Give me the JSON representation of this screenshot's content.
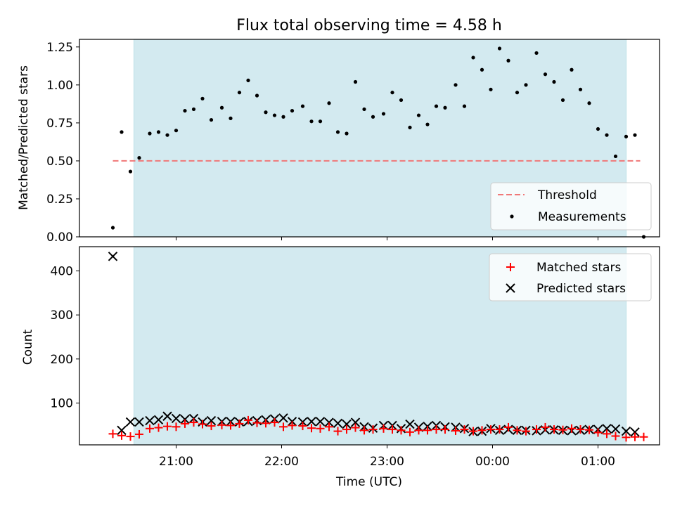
{
  "chart_data": [
    {
      "type": "scatter",
      "title": "Flux total observing time = 4.58 h",
      "xlabel": "",
      "ylabel": "Matched/Predicted stars",
      "ylim": [
        0,
        1.3
      ],
      "yticks": [
        "0.00",
        "0.25",
        "0.50",
        "0.75",
        "1.00",
        "1.25"
      ],
      "ytick_values": [
        0,
        0.25,
        0.5,
        0.75,
        1.0,
        1.25
      ],
      "shaded_region_minutes": [
        1236,
        1516
      ],
      "legend": {
        "position": "lower-right",
        "entries": [
          "Threshold",
          "Measurements"
        ]
      },
      "threshold": {
        "name": "Threshold",
        "value": 0.5,
        "x_range_minutes": [
          1224,
          1524
        ],
        "color": "#f07878"
      },
      "measurements": {
        "name": "Measurements",
        "color": "#000000",
        "x_minutes": [
          1224,
          1229,
          1234,
          1239,
          1245,
          1250,
          1255,
          1260,
          1265,
          1270,
          1275,
          1280,
          1286,
          1291,
          1296,
          1301,
          1306,
          1311,
          1316,
          1321,
          1326,
          1332,
          1337,
          1342,
          1347,
          1352,
          1357,
          1362,
          1367,
          1372,
          1378,
          1383,
          1388,
          1393,
          1398,
          1403,
          1408,
          1413,
          1419,
          1424,
          1429,
          1434,
          1439,
          1444,
          1449,
          1454,
          1459,
          1465,
          1470,
          1475,
          1480,
          1485,
          1490,
          1495,
          1500,
          1505,
          1510,
          1516,
          1521,
          1526
        ],
        "y": [
          0.06,
          0.69,
          0.43,
          0.52,
          0.68,
          0.69,
          0.67,
          0.7,
          0.83,
          0.84,
          0.91,
          0.77,
          0.85,
          0.78,
          0.95,
          1.03,
          0.93,
          0.82,
          0.8,
          0.79,
          0.83,
          0.86,
          0.76,
          0.76,
          0.88,
          0.69,
          0.68,
          1.02,
          0.84,
          0.79,
          0.81,
          0.95,
          0.9,
          0.72,
          0.8,
          0.74,
          0.86,
          0.85,
          1.0,
          0.86,
          1.18,
          1.1,
          0.97,
          1.24,
          1.16,
          0.95,
          1.0,
          1.21,
          1.07,
          1.02,
          0.9,
          1.1,
          0.97,
          0.88,
          0.71,
          0.67,
          0.53,
          0.66,
          0.67,
          0.0
        ]
      }
    },
    {
      "type": "scatter",
      "title": "",
      "xlabel": "Time (UTC)",
      "ylabel": "Count",
      "ylim": [
        5,
        455
      ],
      "yticks": [
        "100",
        "200",
        "300",
        "400"
      ],
      "ytick_values": [
        100,
        200,
        300,
        400
      ],
      "xticks": [
        "21:00",
        "22:00",
        "23:00",
        "00:00",
        "01:00"
      ],
      "xtick_minutes": [
        1260,
        1320,
        1380,
        1440,
        1500
      ],
      "xlim_minutes": [
        1205,
        1535
      ],
      "shaded_region_minutes": [
        1236,
        1516
      ],
      "legend": {
        "position": "top-right",
        "entries": [
          "Matched stars",
          "Predicted stars"
        ]
      },
      "series": [
        {
          "name": "Matched stars",
          "marker": "plus",
          "color": "#ff0000",
          "x_minutes": [
            1224,
            1229,
            1234,
            1239,
            1245,
            1250,
            1255,
            1260,
            1265,
            1270,
            1275,
            1280,
            1286,
            1291,
            1296,
            1301,
            1306,
            1311,
            1316,
            1321,
            1326,
            1332,
            1337,
            1342,
            1347,
            1352,
            1357,
            1362,
            1367,
            1372,
            1378,
            1383,
            1388,
            1393,
            1398,
            1403,
            1408,
            1413,
            1419,
            1424,
            1429,
            1434,
            1439,
            1444,
            1449,
            1454,
            1459,
            1465,
            1470,
            1475,
            1480,
            1485,
            1490,
            1495,
            1500,
            1505,
            1510,
            1516,
            1521,
            1526
          ],
          "y": [
            30,
            26,
            24,
            29,
            42,
            44,
            47,
            46,
            53,
            56,
            52,
            48,
            50,
            49,
            53,
            61,
            55,
            54,
            56,
            46,
            49,
            48,
            43,
            42,
            46,
            36,
            40,
            44,
            38,
            40,
            42,
            40,
            38,
            34,
            38,
            38,
            40,
            40,
            37,
            40,
            36,
            38,
            40,
            40,
            45,
            38,
            36,
            40,
            45,
            40,
            39,
            42,
            40,
            39,
            33,
            30,
            25,
            22,
            23,
            23
          ]
        },
        {
          "name": "Predicted stars",
          "marker": "x",
          "color": "#000000",
          "x_minutes": [
            1224,
            1229,
            1234,
            1239,
            1245,
            1250,
            1255,
            1260,
            1265,
            1270,
            1275,
            1280,
            1286,
            1291,
            1296,
            1301,
            1306,
            1311,
            1316,
            1321,
            1326,
            1332,
            1337,
            1342,
            1347,
            1352,
            1357,
            1362,
            1367,
            1372,
            1378,
            1383,
            1388,
            1393,
            1398,
            1403,
            1408,
            1413,
            1419,
            1424,
            1429,
            1434,
            1439,
            1444,
            1449,
            1454,
            1459,
            1465,
            1470,
            1475,
            1480,
            1485,
            1490,
            1495,
            1500,
            1505,
            1510,
            1516,
            1521
          ],
          "y": [
            433,
            38,
            57,
            57,
            60,
            62,
            70,
            65,
            63,
            65,
            57,
            60,
            58,
            58,
            57,
            58,
            60,
            62,
            64,
            66,
            58,
            57,
            58,
            58,
            56,
            54,
            52,
            56,
            46,
            43,
            49,
            49,
            42,
            52,
            45,
            47,
            49,
            46,
            45,
            42,
            35,
            36,
            42,
            38,
            40,
            38,
            38,
            37,
            39,
            39,
            38,
            37,
            38,
            40,
            40,
            42,
            41,
            36,
            34
          ]
        }
      ]
    }
  ]
}
